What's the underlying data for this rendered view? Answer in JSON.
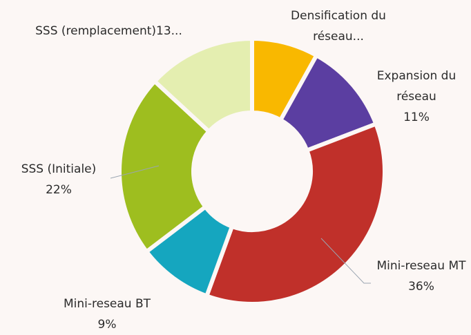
{
  "chart_data": {
    "type": "donut",
    "categories": [
      "Densification du réseau...",
      "Expansion du réseau",
      "Mini-reseau MT",
      "Mini-reseau BT",
      "SSS (Initiale)",
      "SSS (remplacement)"
    ],
    "values": [
      8,
      11,
      36,
      9,
      22,
      13
    ],
    "value_labels": [
      null,
      "11%",
      "36%",
      "9%",
      "22%",
      "13..."
    ],
    "colors": [
      "#f9b800",
      "#5b3ea1",
      "#c0302a",
      "#15a6bf",
      "#9ebe1f",
      "#e4eeb0"
    ]
  }
}
